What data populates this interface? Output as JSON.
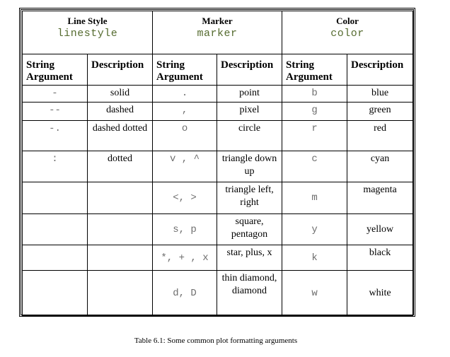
{
  "groups": [
    {
      "title": "Line Style",
      "code": "linestyle"
    },
    {
      "title": "Marker",
      "code": "marker"
    },
    {
      "title": "Color",
      "code": "color"
    }
  ],
  "subheaders": [
    "String Argument",
    "Description",
    "String Argument",
    "Description",
    "String Argument",
    "Description"
  ],
  "rows": [
    [
      "-",
      "solid",
      ".",
      "point",
      "b",
      "blue"
    ],
    [
      "--",
      "dashed",
      ",",
      "pixel",
      "g",
      "green"
    ],
    [
      "-.",
      "dashed dotted",
      "o",
      "circle",
      "r",
      "red"
    ],
    [
      ":",
      "dotted",
      "v , ^",
      "triangle down up",
      "c",
      "cyan"
    ],
    [
      "",
      "",
      "<, >",
      "triangle left, right",
      "m",
      "magenta"
    ],
    [
      "",
      "",
      "s, p",
      "square, pentagon",
      "y",
      "yellow"
    ],
    [
      "",
      "",
      "*, + , x",
      "star, plus, x",
      "k",
      "black"
    ],
    [
      "",
      "",
      "d, D",
      "thin diamond, diamond",
      "w",
      "white"
    ]
  ],
  "caption": "Table 6.1: Some common plot formatting arguments"
}
